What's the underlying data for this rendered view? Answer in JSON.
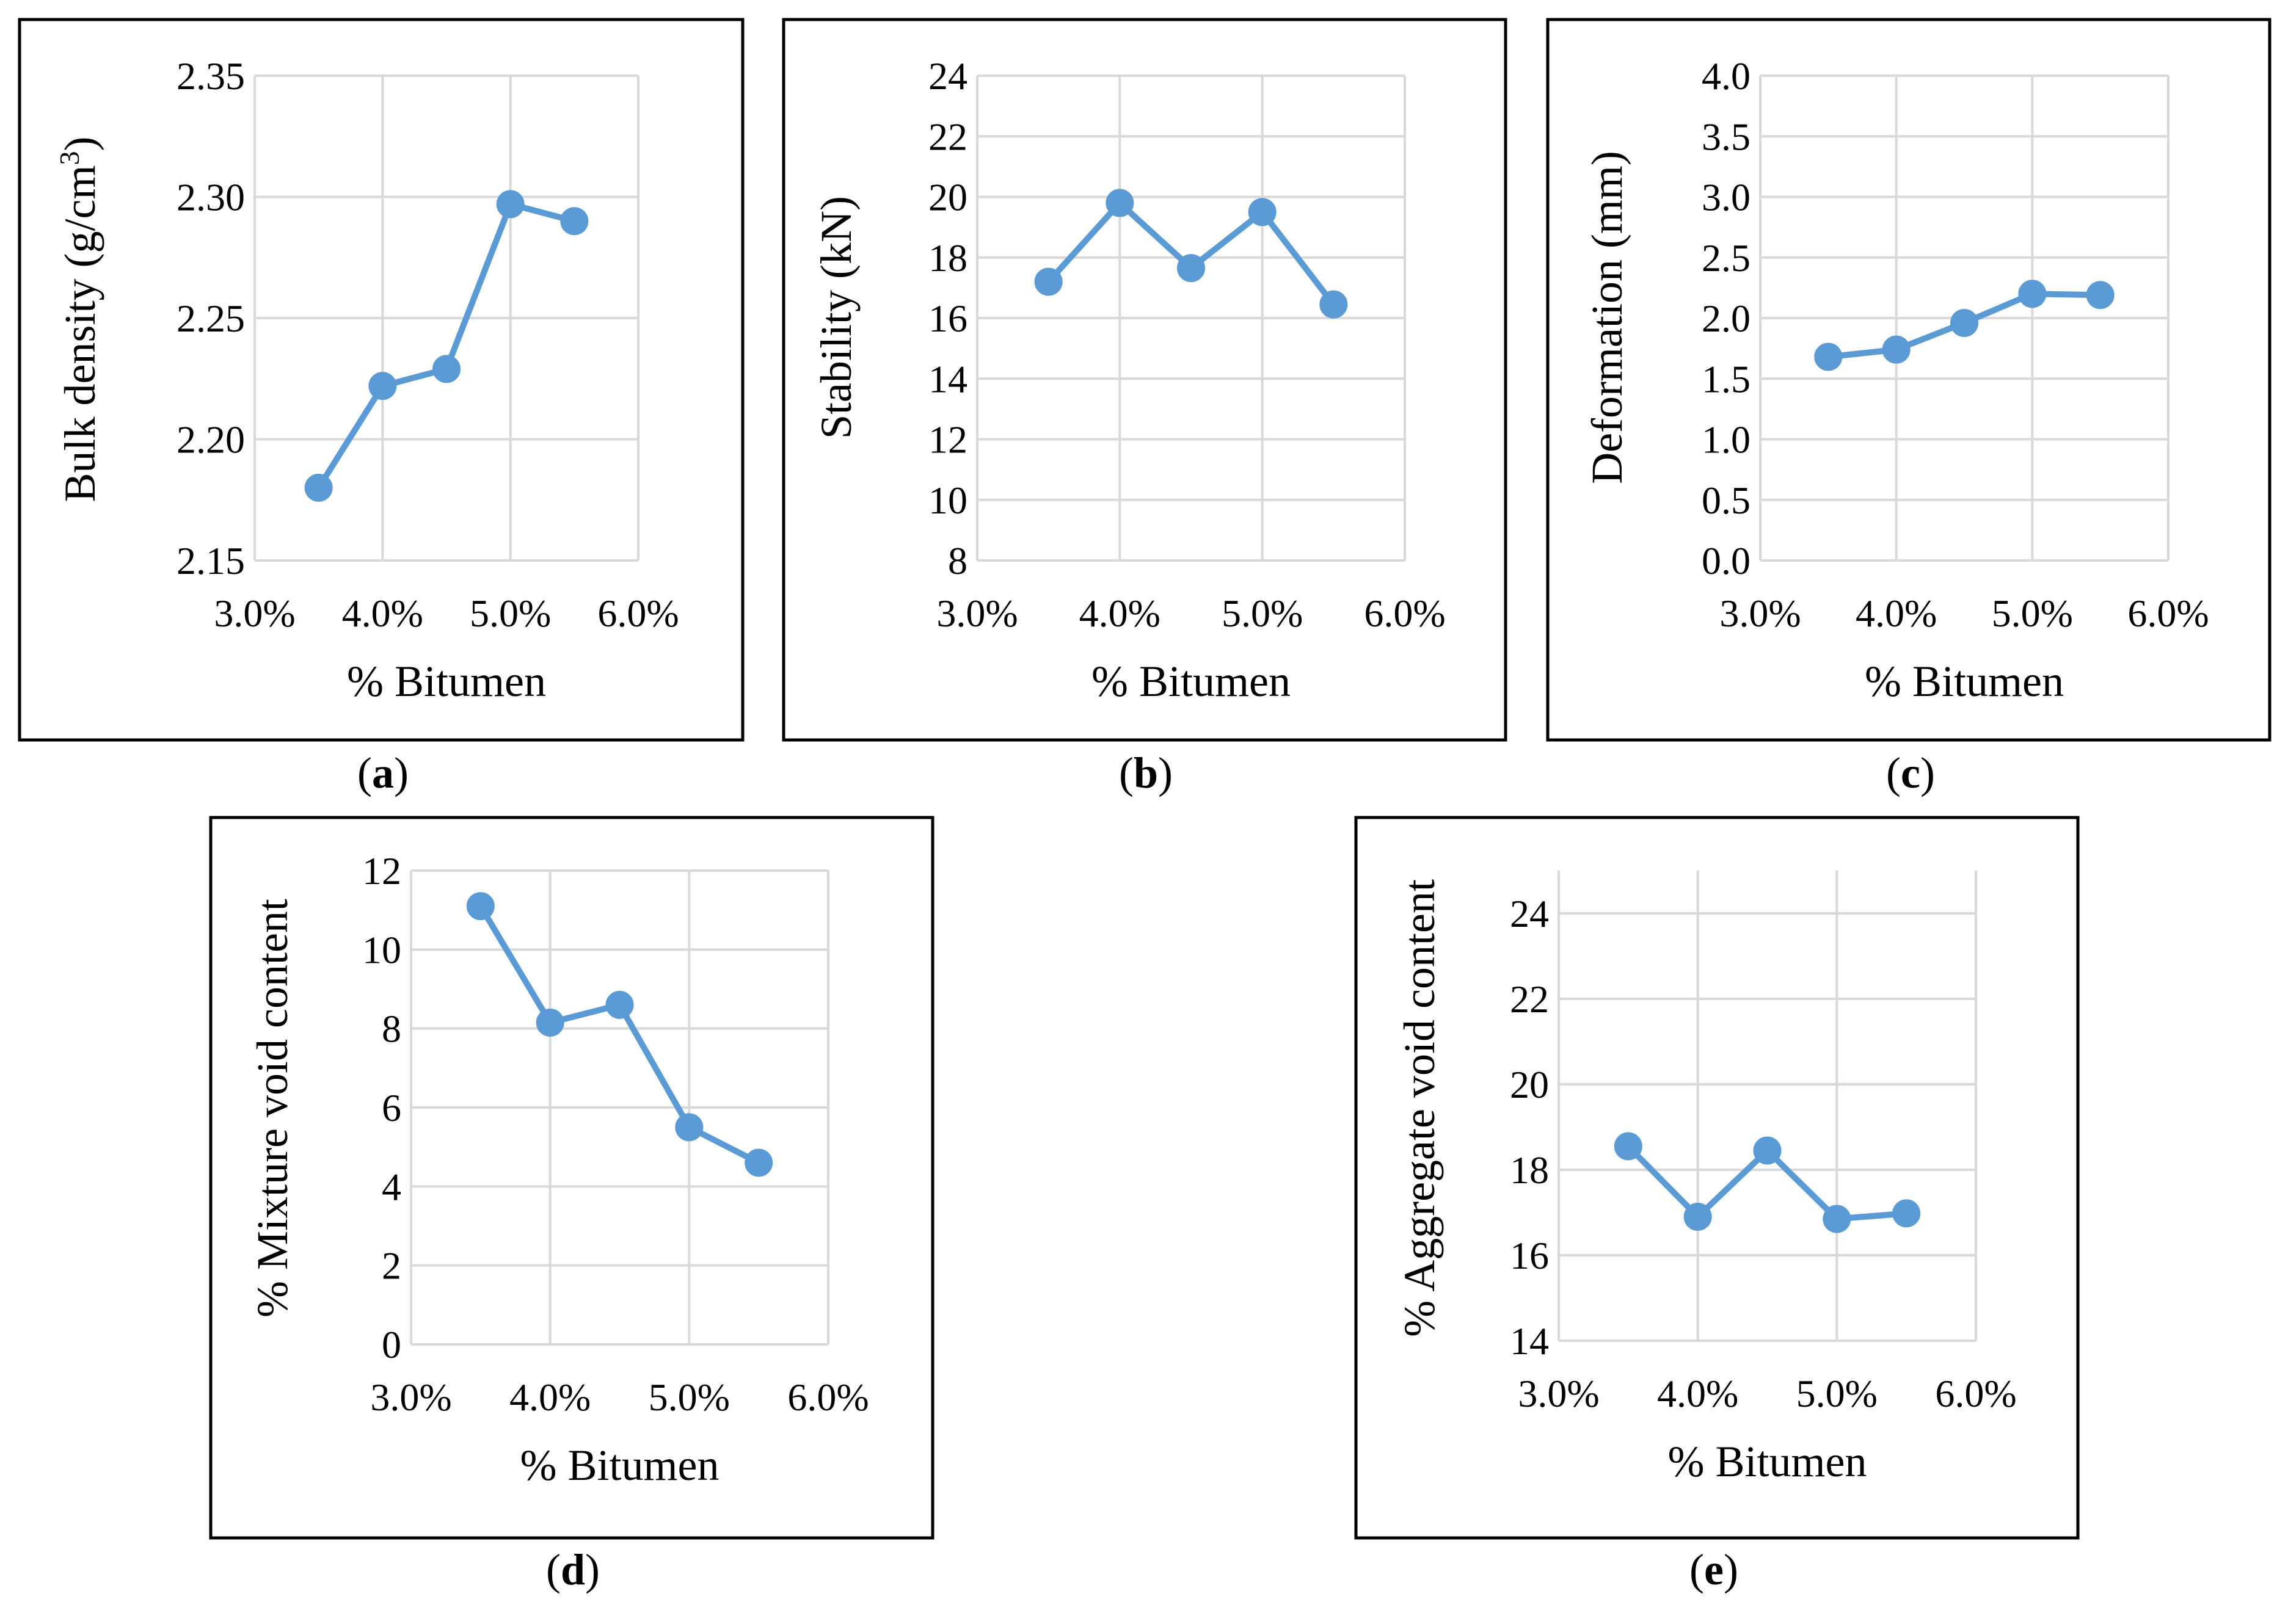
{
  "figure": {
    "palette": {
      "series": "#5b9bd5",
      "grid": "#d9d9d9",
      "frame": "#000000"
    }
  },
  "chart_data": [
    {
      "panel": "a",
      "type": "line",
      "caption": {
        "open": "(",
        "letter": "a",
        "close": ")"
      },
      "xlabel": "% Bitumen",
      "ylabel": "Bulk density (g/cm",
      "ylabel_sup": "3",
      "ylabel_end": ")",
      "x": [
        0.035,
        0.04,
        0.045,
        0.05,
        0.055
      ],
      "values": [
        2.18,
        2.222,
        2.229,
        2.297,
        2.29
      ],
      "xlim": [
        0.03,
        0.06
      ],
      "ylim": [
        2.15,
        2.35
      ],
      "xticks": [
        0.03,
        0.04,
        0.05,
        0.06
      ],
      "xtick_labels": [
        "3.0%",
        "4.0%",
        "5.0%",
        "6.0%"
      ],
      "yticks": [
        2.15,
        2.2,
        2.25,
        2.3,
        2.35
      ],
      "ytick_labels": [
        "2.15",
        "2.20",
        "2.25",
        "2.30",
        "2.35"
      ]
    },
    {
      "panel": "b",
      "type": "line",
      "caption": {
        "open": "(",
        "letter": "b",
        "close": ")"
      },
      "xlabel": "% Bitumen",
      "ylabel": "Stability (kN)",
      "x": [
        0.035,
        0.04,
        0.045,
        0.05,
        0.055
      ],
      "values": [
        17.2,
        19.8,
        17.65,
        19.5,
        16.45
      ],
      "xlim": [
        0.03,
        0.06
      ],
      "ylim": [
        8,
        24
      ],
      "xticks": [
        0.03,
        0.04,
        0.05,
        0.06
      ],
      "xtick_labels": [
        "3.0%",
        "4.0%",
        "5.0%",
        "6.0%"
      ],
      "yticks": [
        8,
        10,
        12,
        14,
        16,
        18,
        20,
        22,
        24
      ],
      "ytick_labels": [
        "8",
        "10",
        "12",
        "14",
        "16",
        "18",
        "20",
        "22",
        "24"
      ]
    },
    {
      "panel": "c",
      "type": "line",
      "caption": {
        "open": "(",
        "letter": "c",
        "close": ")"
      },
      "xlabel": "% Bitumen",
      "ylabel": "Deformation (mm)",
      "x": [
        0.035,
        0.04,
        0.045,
        0.05,
        0.055
      ],
      "values": [
        1.68,
        1.74,
        1.96,
        2.2,
        2.19
      ],
      "xlim": [
        0.03,
        0.06
      ],
      "ylim": [
        0,
        4
      ],
      "xticks": [
        0.03,
        0.04,
        0.05,
        0.06
      ],
      "xtick_labels": [
        "3.0%",
        "4.0%",
        "5.0%",
        "6.0%"
      ],
      "yticks": [
        0,
        0.5,
        1,
        1.5,
        2,
        2.5,
        3,
        3.5,
        4
      ],
      "ytick_labels": [
        "0.0",
        "0.5",
        "1.0",
        "1.5",
        "2.0",
        "2.5",
        "3.0",
        "3.5",
        "4.0"
      ]
    },
    {
      "panel": "d",
      "type": "line",
      "caption": {
        "open": "(",
        "letter": "d",
        "close": ")"
      },
      "xlabel": "% Bitumen",
      "ylabel": "% Mixture void content",
      "x": [
        0.035,
        0.04,
        0.045,
        0.05,
        0.055
      ],
      "values": [
        11.1,
        8.15,
        8.6,
        5.5,
        4.6
      ],
      "xlim": [
        0.03,
        0.06
      ],
      "ylim": [
        0,
        12
      ],
      "xticks": [
        0.03,
        0.04,
        0.05,
        0.06
      ],
      "xtick_labels": [
        "3.0%",
        "4.0%",
        "5.0%",
        "6.0%"
      ],
      "yticks": [
        0,
        2,
        4,
        6,
        8,
        10,
        12
      ],
      "ytick_labels": [
        "0",
        "2",
        "4",
        "6",
        "8",
        "10",
        "12"
      ]
    },
    {
      "panel": "e",
      "type": "line",
      "caption": {
        "open": "(",
        "letter": "e",
        "close": ")"
      },
      "xlabel": "% Bitumen",
      "ylabel": "% Aggregate void content",
      "x": [
        0.035,
        0.04,
        0.045,
        0.05,
        0.055
      ],
      "values": [
        18.55,
        16.9,
        18.45,
        16.85,
        16.98
      ],
      "xlim": [
        0.03,
        0.06
      ],
      "ylim": [
        14,
        25
      ],
      "xticks": [
        0.03,
        0.04,
        0.05,
        0.06
      ],
      "xtick_labels": [
        "3.0%",
        "4.0%",
        "5.0%",
        "6.0%"
      ],
      "yticks": [
        14,
        16,
        18,
        20,
        22,
        24
      ],
      "ytick_labels": [
        "14",
        "16",
        "18",
        "20",
        "22",
        "24"
      ]
    }
  ]
}
